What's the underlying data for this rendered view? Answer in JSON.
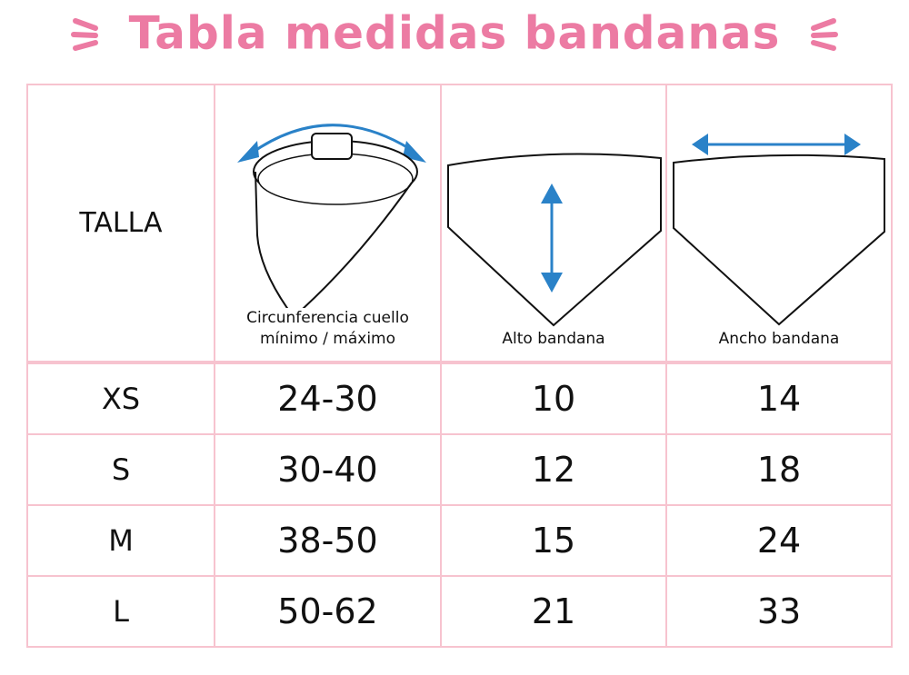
{
  "title": "Tabla medidas bandanas",
  "colors": {
    "title": "#ec7ba3",
    "border": "#f7c3cf",
    "arrow": "#2a82c8"
  },
  "header": {
    "size_label": "TALLA",
    "columns": [
      {
        "label": "Circunferencia cuello",
        "label2": "mínimo / máximo",
        "icon": "bandana-collar-arrow-icon"
      },
      {
        "label": "Alto bandana",
        "icon": "bandana-height-arrow-icon"
      },
      {
        "label": "Ancho bandana",
        "icon": "bandana-width-arrow-icon"
      }
    ]
  },
  "rows": [
    {
      "size": "XS",
      "neck": "24-30",
      "height": "10",
      "width": "14"
    },
    {
      "size": "S",
      "neck": "30-40",
      "height": "12",
      "width": "18"
    },
    {
      "size": "M",
      "neck": "38-50",
      "height": "15",
      "width": "24"
    },
    {
      "size": "L",
      "neck": "50-62",
      "height": "21",
      "width": "33"
    }
  ]
}
